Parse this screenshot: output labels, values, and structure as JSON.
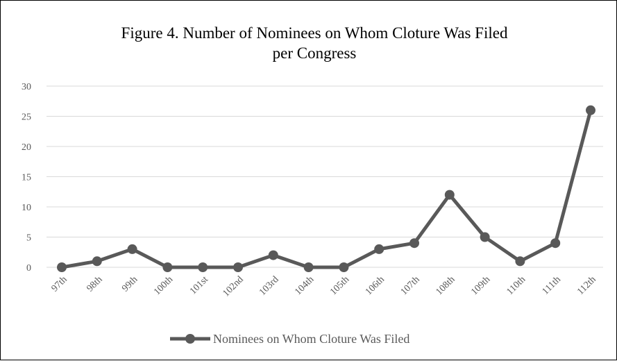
{
  "chart_data": {
    "type": "line",
    "title_lines": [
      "Figure 4. Number of Nominees on Whom Cloture Was Filed",
      "per Congress"
    ],
    "xlabel": "",
    "ylabel": "",
    "categories": [
      "97th",
      "98th",
      "99th",
      "100th",
      "101st",
      "102nd",
      "103rd",
      "104th",
      "105th",
      "106th",
      "107th",
      "108th",
      "109th",
      "110th",
      "111th",
      "112th"
    ],
    "series": [
      {
        "name": "Nominees on Whom Cloture Was Filed",
        "values": [
          0,
          1,
          3,
          0,
          0,
          0,
          2,
          0,
          0,
          3,
          4,
          12,
          5,
          1,
          4,
          26
        ]
      }
    ],
    "ylim": [
      0,
      30
    ],
    "yticks": [
      "0",
      "5",
      "10",
      "15",
      "20",
      "25",
      "30"
    ],
    "grid": true,
    "legend_position": "bottom",
    "colors": {
      "line": "#595959",
      "grid": "#d9d9d9",
      "text": "#595959"
    }
  }
}
